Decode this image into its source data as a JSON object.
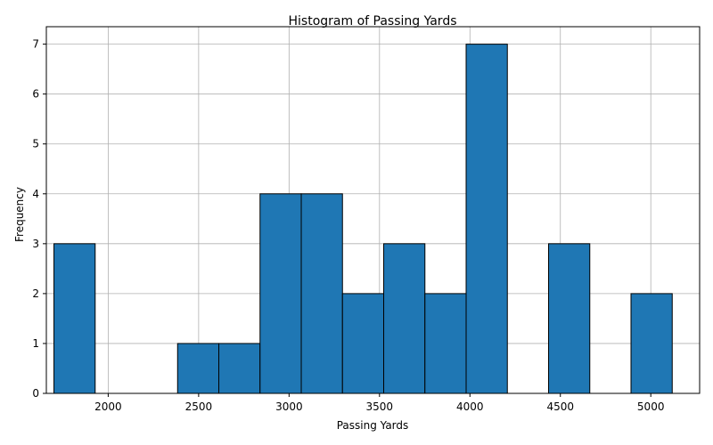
{
  "chart_data": {
    "type": "bar",
    "title": "Histogram of Passing Yards",
    "xlabel": "Passing Yards",
    "ylabel": "Frequency",
    "bin_start": 1700,
    "bin_width": 227.9,
    "values": [
      3,
      0,
      0,
      1,
      1,
      4,
      4,
      2,
      3,
      2,
      7,
      0,
      3,
      0,
      2
    ],
    "xlim": [
      1658,
      5270
    ],
    "ylim": [
      0,
      7.35
    ],
    "xticks": [
      2000,
      2500,
      3000,
      3500,
      4000,
      4500,
      5000
    ],
    "yticks": [
      0,
      1,
      2,
      3,
      4,
      5,
      6,
      7
    ],
    "grid": true,
    "bar_color": "#1f77b4",
    "edge_color": "#000000"
  }
}
